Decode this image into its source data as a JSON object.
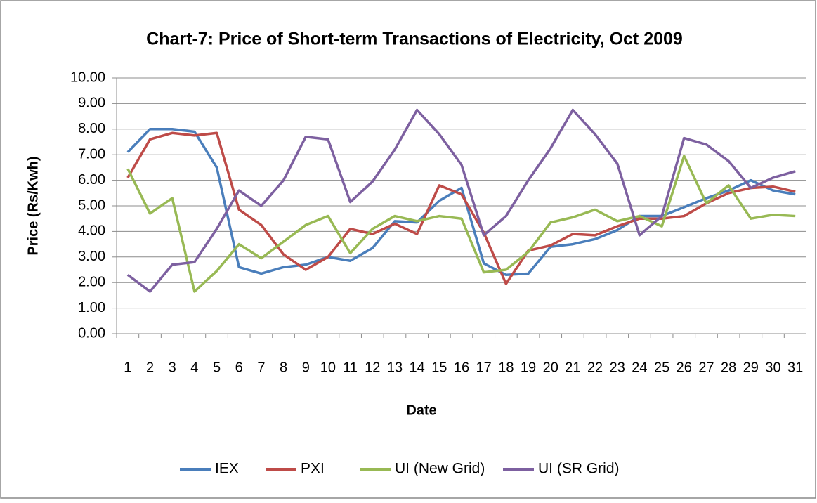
{
  "chart_data": {
    "type": "line",
    "title": "Chart-7: Price of Short-term Transactions of Electricity, Oct 2009",
    "x_label": "Date",
    "y_label": "Price (Rs/Kwh)",
    "categories": [
      "1",
      "2",
      "3",
      "4",
      "5",
      "6",
      "7",
      "8",
      "9",
      "10",
      "11",
      "12",
      "13",
      "14",
      "15",
      "16",
      "17",
      "18",
      "19",
      "20",
      "21",
      "22",
      "23",
      "24",
      "25",
      "26",
      "27",
      "28",
      "29",
      "30",
      "31"
    ],
    "series": [
      {
        "name": "IEX",
        "color": "#4a7ebb",
        "values": [
          7.1,
          8.0,
          8.0,
          7.9,
          6.5,
          2.6,
          2.35,
          2.6,
          2.7,
          3.0,
          2.85,
          3.35,
          4.4,
          4.35,
          5.2,
          5.7,
          2.75,
          2.3,
          2.35,
          3.4,
          3.5,
          3.7,
          4.05,
          4.6,
          4.6,
          4.95,
          5.3,
          5.6,
          6.0,
          5.6,
          5.45
        ]
      },
      {
        "name": "PXI",
        "color": "#be4b48",
        "values": [
          6.1,
          7.6,
          7.85,
          7.75,
          7.85,
          4.85,
          4.25,
          3.1,
          2.5,
          3.0,
          4.1,
          3.9,
          4.3,
          3.9,
          5.8,
          5.45,
          3.95,
          1.95,
          3.25,
          3.45,
          3.9,
          3.85,
          4.2,
          4.5,
          4.5,
          4.6,
          5.1,
          5.5,
          5.7,
          5.75,
          5.55
        ]
      },
      {
        "name": "UI (New Grid)",
        "color": "#98b954",
        "values": [
          6.45,
          4.7,
          5.3,
          1.65,
          2.45,
          3.5,
          2.95,
          3.6,
          4.25,
          4.6,
          3.15,
          4.1,
          4.6,
          4.4,
          4.6,
          4.5,
          2.4,
          2.5,
          3.2,
          4.35,
          4.55,
          4.85,
          4.4,
          4.6,
          4.2,
          6.95,
          5.1,
          5.8,
          4.5,
          4.65,
          4.6
        ]
      },
      {
        "name": "UI (SR Grid)",
        "color": "#7d60a0",
        "values": [
          2.3,
          1.65,
          2.7,
          2.8,
          4.1,
          5.6,
          5.0,
          6.0,
          7.7,
          7.6,
          5.15,
          5.95,
          7.2,
          8.75,
          7.8,
          6.6,
          3.85,
          4.6,
          6.0,
          7.25,
          8.75,
          7.8,
          6.65,
          3.85,
          4.6,
          7.65,
          7.4,
          6.75,
          5.7,
          6.1,
          6.35
        ]
      }
    ],
    "ylim": [
      0,
      10
    ],
    "yticks": [
      {
        "value": 0,
        "label": "0.00"
      },
      {
        "value": 1,
        "label": "1.00"
      },
      {
        "value": 2,
        "label": "2.00"
      },
      {
        "value": 3,
        "label": "3.00"
      },
      {
        "value": 4,
        "label": "4.00"
      },
      {
        "value": 5,
        "label": "5.00"
      },
      {
        "value": 6,
        "label": "6.00"
      },
      {
        "value": 7,
        "label": "7.00"
      },
      {
        "value": 8,
        "label": "8.00"
      },
      {
        "value": 9,
        "label": "9.00"
      },
      {
        "value": 10,
        "label": "10.00"
      }
    ],
    "grid": true,
    "legend": "bottom"
  }
}
